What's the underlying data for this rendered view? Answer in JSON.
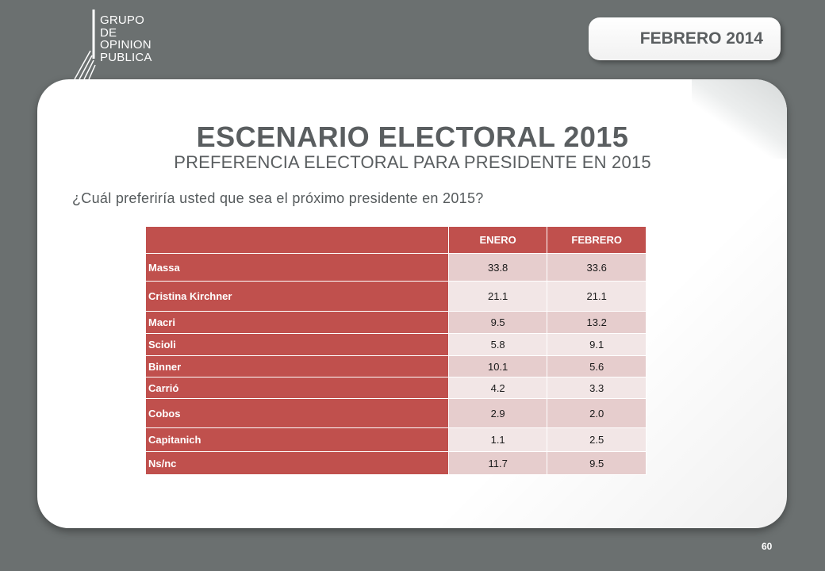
{
  "logo": {
    "lines": [
      "GRUPO",
      "DE",
      "OPINION",
      "PUBLICA"
    ]
  },
  "date_badge": "FEBRERO 2014",
  "title": "ESCENARIO ELECTORAL 2015",
  "subtitle": "PREFERENCIA ELECTORAL PARA PRESIDENTE EN 2015",
  "question": "¿Cuál preferiría usted que sea el próximo presidente en 2015?",
  "table": {
    "columns": [
      "",
      "ENERO",
      "FEBRERO"
    ],
    "rows": [
      {
        "name": "Massa",
        "enero": "33.8",
        "febrero": "33.6"
      },
      {
        "name": "Cristina Kirchner",
        "enero": "21.1",
        "febrero": "21.1"
      },
      {
        "name": "Macri",
        "enero": "9.5",
        "febrero": "13.2"
      },
      {
        "name": "Scioli",
        "enero": "5.8",
        "febrero": "9.1"
      },
      {
        "name": "Binner",
        "enero": "10.1",
        "febrero": "5.6"
      },
      {
        "name": "Carrió",
        "enero": "4.2",
        "febrero": "3.3"
      },
      {
        "name": "Cobos",
        "enero": "2.9",
        "febrero": "2.0"
      },
      {
        "name": "Capitanich",
        "enero": "1.1",
        "febrero": "2.5"
      },
      {
        "name": "Ns/nc",
        "enero": "11.7",
        "febrero": "9.5"
      }
    ]
  },
  "page_number": "60",
  "colors": {
    "background": "#6b7070",
    "accent_red": "#c0504d",
    "cell_dark": "#e6cdcd",
    "cell_light": "#f2e6e6",
    "text_gray": "#5a5e60"
  }
}
